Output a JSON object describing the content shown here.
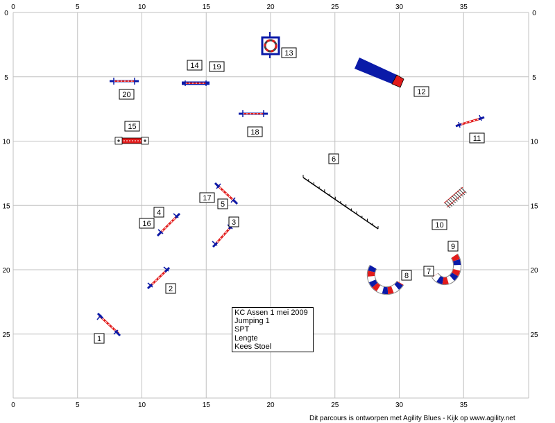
{
  "axis": {
    "x_ticks": [
      "0",
      "5",
      "10",
      "15",
      "20",
      "25",
      "30",
      "35"
    ],
    "y_ticks": [
      "0",
      "5",
      "10",
      "15",
      "20",
      "25"
    ]
  },
  "info": {
    "line1": "KC Assen 1 mei 2009",
    "line2": "Jumping 1",
    "line3": "SPT",
    "line4": "Lengte",
    "line5": "Kees Stoel"
  },
  "footer": "Dit parcours is ontworpen met Agility Blues - Kijk op www.agility.net",
  "colors": {
    "grid": "#c0c0c0",
    "blue": "#0a1aa8",
    "red": "#e21b1b"
  },
  "obstacles": [
    {
      "id": "jump",
      "number": "1"
    },
    {
      "id": "jump",
      "number": "2"
    },
    {
      "id": "jump",
      "number": "3"
    },
    {
      "id": "jump",
      "number": "4"
    },
    {
      "id": "jump",
      "number": "5"
    },
    {
      "id": "dog-walk",
      "number": "6"
    },
    {
      "id": "tunnel-start",
      "number": "7"
    },
    {
      "id": "tunnel",
      "number": "8"
    },
    {
      "id": "tunnel",
      "number": "9"
    },
    {
      "id": "weave-poles",
      "number": "10"
    },
    {
      "id": "jump",
      "number": "11"
    },
    {
      "id": "chute",
      "number": "12"
    },
    {
      "id": "tire",
      "number": "13"
    },
    {
      "id": "jump",
      "number": "14"
    },
    {
      "id": "long-jump",
      "number": "15"
    },
    {
      "id": "jump",
      "number": "16"
    },
    {
      "id": "jump",
      "number": "17"
    },
    {
      "id": "jump",
      "number": "18"
    },
    {
      "id": "jump",
      "number": "19"
    },
    {
      "id": "jump",
      "number": "20"
    }
  ]
}
